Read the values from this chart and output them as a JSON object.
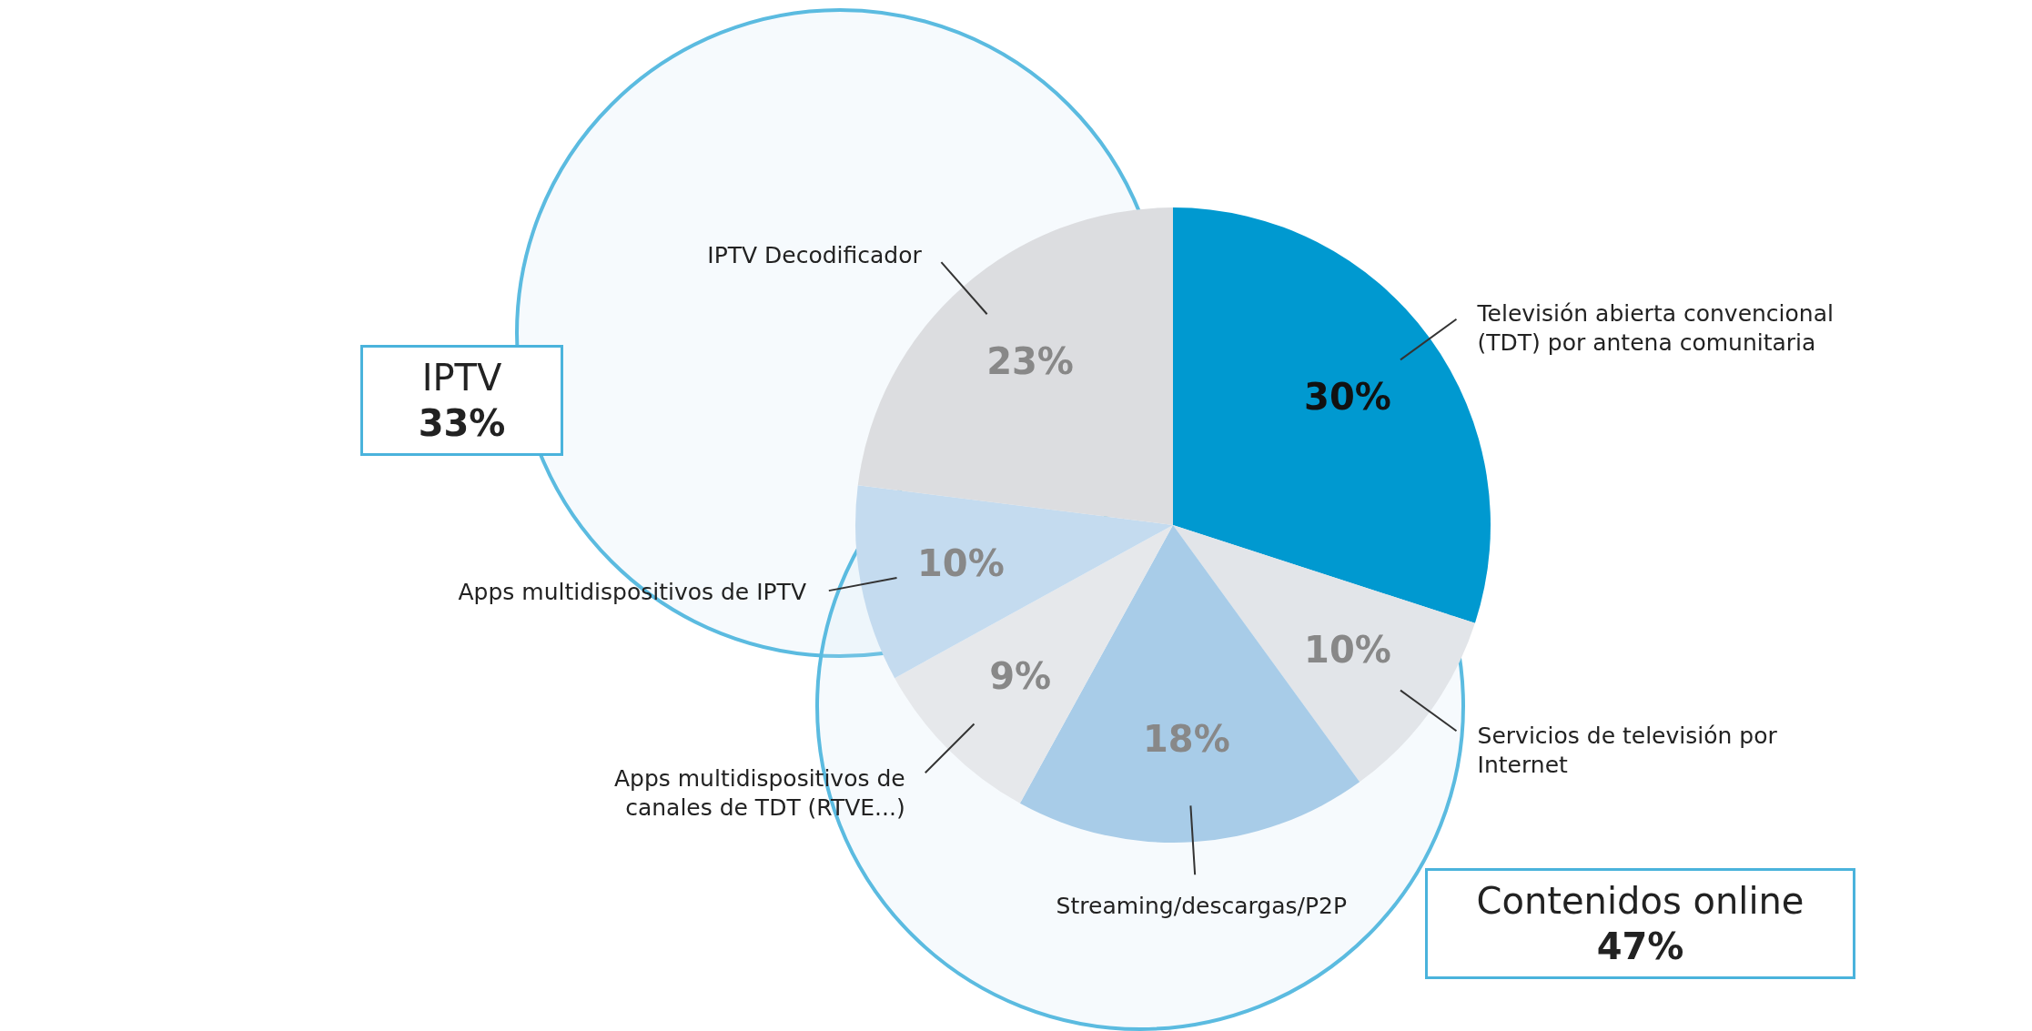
{
  "chart_data": {
    "type": "pie",
    "categories": [
      "Televisión abierta convencional (TDT) por antena comunitaria",
      "Servicios de televisión por Internet",
      "Streaming/descargas/P2P",
      "Apps multidispositivos de canales de TDT (RTVE...)",
      "Apps multidispositivos de IPTV",
      "IPTV Decodificador"
    ],
    "values": [
      30,
      10,
      18,
      9,
      10,
      23
    ],
    "value_labels": [
      "30%",
      "10%",
      "18%",
      "9%",
      "10%",
      "23%"
    ],
    "colors": [
      "#0099d0",
      "#e2e5e9",
      "#a8cce8",
      "#e6e8eb",
      "#c4dbef",
      "#dcdde0"
    ],
    "annotations": [
      "IPTV 33%",
      "Contenidos online 47%"
    ]
  }
}
